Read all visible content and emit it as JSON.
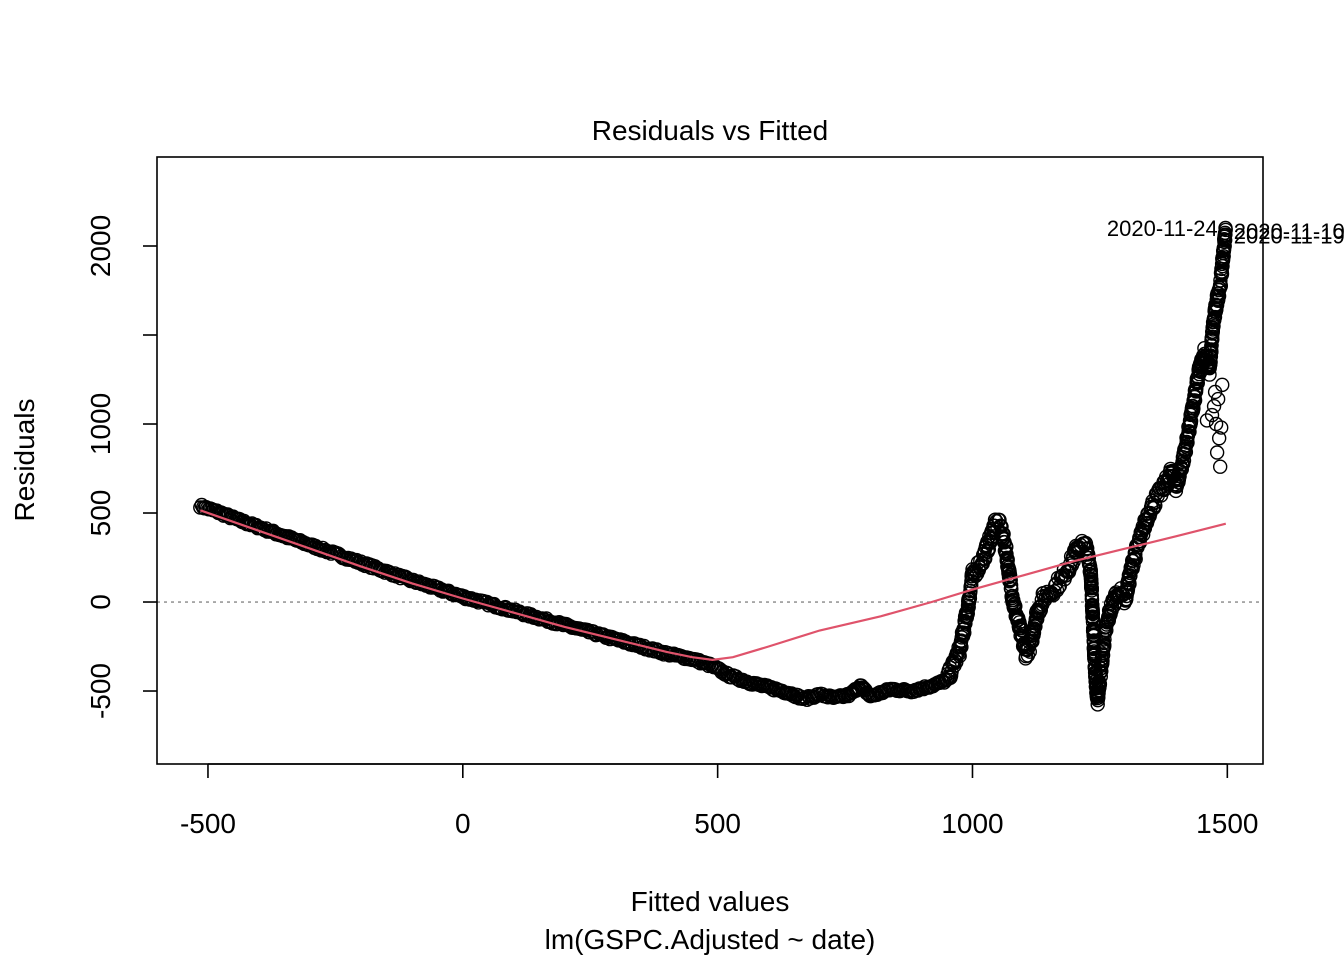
{
  "chart_data": {
    "type": "scatter",
    "title": "Residuals vs Fitted",
    "xlabel": "Fitted values",
    "subtitle": "lm(GSPC.Adjusted ~ date)",
    "ylabel": "Residuals",
    "xlim": [
      -600,
      1570
    ],
    "ylim": [
      -910,
      2500
    ],
    "x_ticks": [
      -500,
      0,
      500,
      1000,
      1500
    ],
    "y_ticks": [
      -500,
      0,
      500,
      1000,
      1500,
      2000
    ],
    "y_tick_labels": [
      "-500",
      "0",
      "500",
      "1000",
      "",
      "2000"
    ],
    "x_tick_labels": [
      "-500",
      "0",
      "500",
      "1000",
      "1500"
    ],
    "reference_line": {
      "y": 0,
      "style": "dotted",
      "color": "#999999"
    },
    "residual_trace": [
      [
        -515,
        540
      ],
      [
        -480,
        505
      ],
      [
        -440,
        460
      ],
      [
        -400,
        420
      ],
      [
        -350,
        370
      ],
      [
        -300,
        320
      ],
      [
        -250,
        270
      ],
      [
        -200,
        220
      ],
      [
        -150,
        170
      ],
      [
        -100,
        120
      ],
      [
        -50,
        75
      ],
      [
        0,
        30
      ],
      [
        50,
        -10
      ],
      [
        100,
        -50
      ],
      [
        150,
        -90
      ],
      [
        200,
        -130
      ],
      [
        250,
        -170
      ],
      [
        300,
        -210
      ],
      [
        350,
        -250
      ],
      [
        400,
        -290
      ],
      [
        450,
        -320
      ],
      [
        490,
        -360
      ],
      [
        520,
        -410
      ],
      [
        560,
        -450
      ],
      [
        600,
        -480
      ],
      [
        640,
        -510
      ],
      [
        670,
        -545
      ],
      [
        700,
        -520
      ],
      [
        730,
        -540
      ],
      [
        760,
        -520
      ],
      [
        780,
        -470
      ],
      [
        800,
        -530
      ],
      [
        840,
        -490
      ],
      [
        880,
        -500
      ],
      [
        920,
        -470
      ],
      [
        950,
        -440
      ],
      [
        975,
        -270
      ],
      [
        990,
        -50
      ],
      [
        1000,
        150
      ],
      [
        1020,
        240
      ],
      [
        1035,
        350
      ],
      [
        1045,
        450
      ],
      [
        1055,
        420
      ],
      [
        1065,
        300
      ],
      [
        1080,
        0
      ],
      [
        1095,
        -180
      ],
      [
        1105,
        -290
      ],
      [
        1115,
        -230
      ],
      [
        1125,
        -80
      ],
      [
        1140,
        30
      ],
      [
        1155,
        60
      ],
      [
        1175,
        130
      ],
      [
        1195,
        230
      ],
      [
        1210,
        330
      ],
      [
        1222,
        310
      ],
      [
        1232,
        180
      ],
      [
        1240,
        -350
      ],
      [
        1245,
        -560
      ],
      [
        1250,
        -430
      ],
      [
        1260,
        -180
      ],
      [
        1270,
        -50
      ],
      [
        1285,
        60
      ],
      [
        1300,
        20
      ],
      [
        1315,
        230
      ],
      [
        1330,
        360
      ],
      [
        1345,
        500
      ],
      [
        1360,
        580
      ],
      [
        1375,
        640
      ],
      [
        1390,
        730
      ],
      [
        1400,
        650
      ],
      [
        1415,
        820
      ],
      [
        1430,
        1050
      ],
      [
        1445,
        1300
      ],
      [
        1455,
        1400
      ],
      [
        1465,
        1300
      ],
      [
        1472,
        1550
      ],
      [
        1480,
        1700
      ],
      [
        1487,
        1800
      ],
      [
        1492,
        1950
      ],
      [
        1497,
        2100
      ]
    ],
    "scatter_outliers": [
      [
        1478,
        1000
      ],
      [
        1484,
        920
      ],
      [
        1480,
        840
      ],
      [
        1486,
        760
      ],
      [
        1470,
        1050
      ],
      [
        1474,
        1100
      ],
      [
        1488,
        980
      ],
      [
        1460,
        1020
      ],
      [
        1476,
        1180
      ],
      [
        1482,
        1140
      ],
      [
        1490,
        1220
      ]
    ],
    "smoother": {
      "color": "#df536b",
      "points": [
        [
          -515,
          515
        ],
        [
          -400,
          400
        ],
        [
          -300,
          300
        ],
        [
          -200,
          200
        ],
        [
          -100,
          105
        ],
        [
          0,
          20
        ],
        [
          100,
          -60
        ],
        [
          200,
          -140
        ],
        [
          300,
          -210
        ],
        [
          400,
          -280
        ],
        [
          450,
          -310
        ],
        [
          490,
          -325
        ],
        [
          530,
          -310
        ],
        [
          600,
          -250
        ],
        [
          700,
          -160
        ],
        [
          820,
          -80
        ],
        [
          920,
          0
        ],
        [
          1000,
          70
        ],
        [
          1100,
          150
        ],
        [
          1200,
          230
        ],
        [
          1300,
          300
        ],
        [
          1400,
          370
        ],
        [
          1497,
          440
        ]
      ]
    },
    "annotations": [
      {
        "text": "2020-11-24",
        "x": 1497,
        "y": 2100,
        "pos": "left"
      },
      {
        "text": "2020-11-10",
        "x": 1497,
        "y": 2085,
        "pos": "right"
      },
      {
        "text": "2020-11-19",
        "x": 1497,
        "y": 2060,
        "pos": "right"
      }
    ],
    "grid": false,
    "legend": "none"
  }
}
